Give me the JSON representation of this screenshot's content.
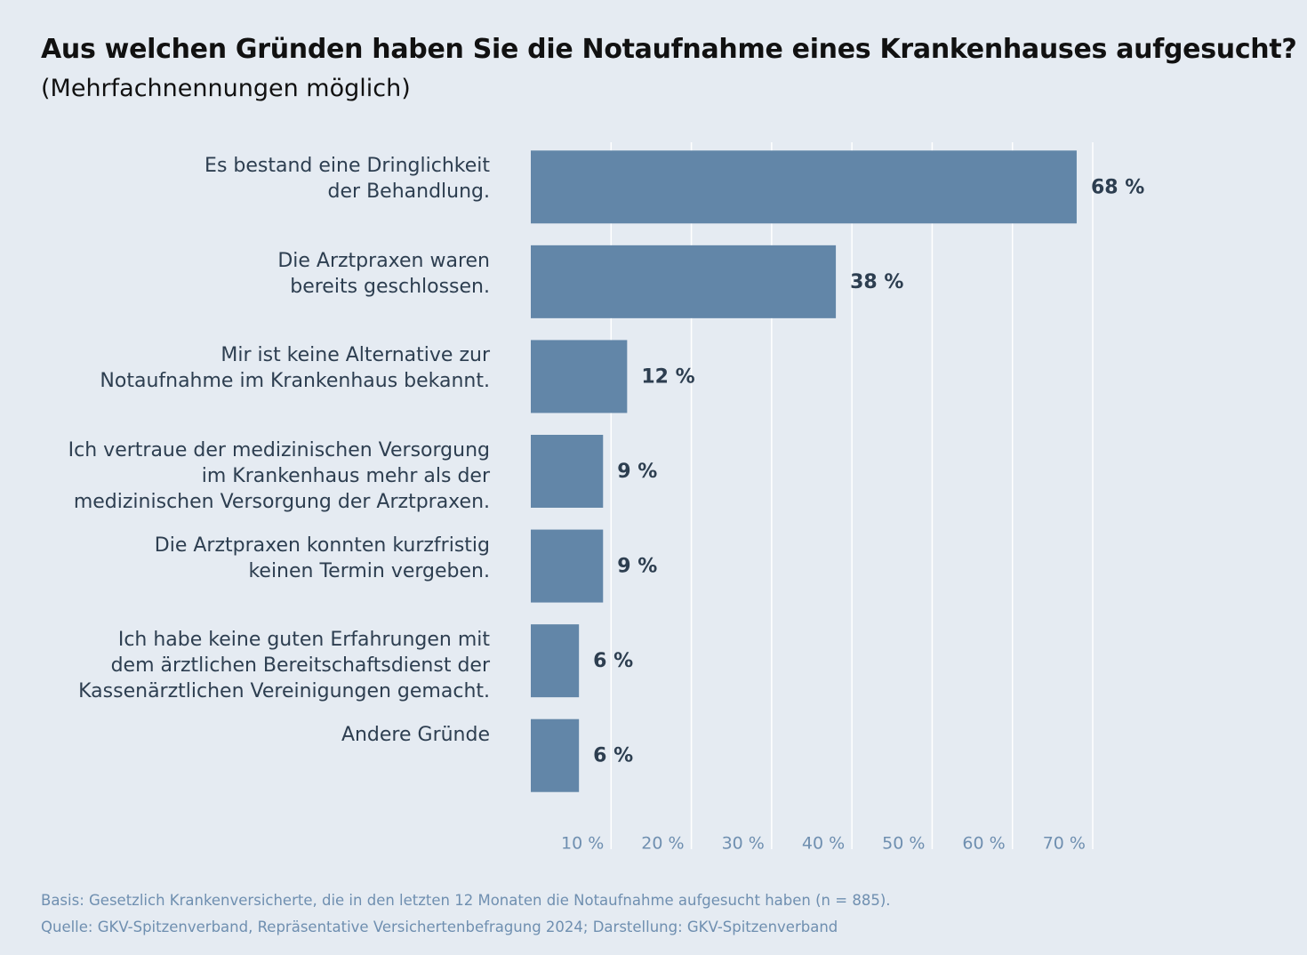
{
  "chart_data": {
    "type": "hbar",
    "title": "Aus welchen Gründen haben Sie die Notaufnahme eines Krankenhauses aufgesucht?",
    "subtitle": "(Mehrfachnennungen möglich)",
    "categories": [
      "Es bestand eine Dringlichkeit\nder Behandlung.",
      "Die Arztpraxen waren\nbereits geschlossen.",
      "Mir ist keine Alternative zur\nNotaufnahme im Krankenhaus bekannt.",
      "Ich vertraue der medizinischen Versorgung\nim Krankenhaus mehr als der\nmedizinischen Versorgung der Arztpraxen.",
      "Die Arztpraxen konnten kurzfristig\nkeinen Termin vergeben.",
      "Ich habe keine guten Erfahrungen mit\ndem ärztlichen Bereitschaftsdienst der\nKassenärztlichen Vereinigungen gemacht.",
      "Andere Gründe"
    ],
    "values": [
      68,
      38,
      12,
      9,
      9,
      6,
      6
    ],
    "value_labels": [
      "68 %",
      "38 %",
      "12 %",
      "9 %",
      "9 %",
      "6 %",
      "6 %"
    ],
    "color": "#6286a8",
    "xlim": [
      0,
      70
    ],
    "xticks": [
      {
        "value": 10,
        "label": "10 %"
      },
      {
        "value": 20,
        "label": "20 %"
      },
      {
        "value": 30,
        "label": "30 %"
      },
      {
        "value": 40,
        "label": "40 %"
      },
      {
        "value": 50,
        "label": "50 %"
      },
      {
        "value": 60,
        "label": "60 %"
      },
      {
        "value": 70,
        "label": "70 %"
      }
    ],
    "grid": true,
    "notes": [
      "Basis: Gesetzlich Krankenversicherte, die in den letzten 12 Monaten die Notaufnahme aufgesucht haben (n = 885).",
      "Quelle: GKV-Spitzenverband, Repräsentative Versichertenbefragung 2024; Darstellung: GKV-Spitzenverband"
    ]
  }
}
